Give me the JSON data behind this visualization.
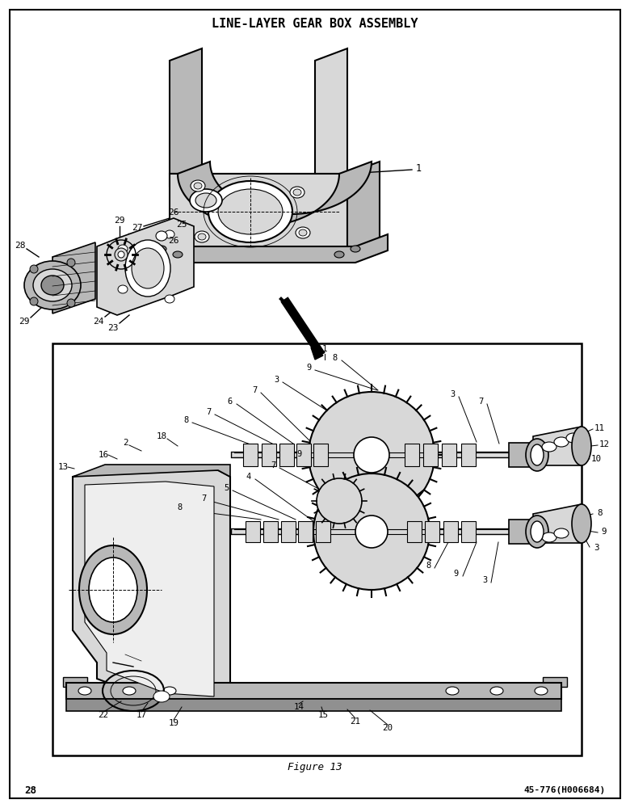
{
  "title": "LINE-LAYER GEAR BOX ASSEMBLY",
  "figure_label": "Figure 13",
  "page_number": "28",
  "part_number": "45-776(H006684)",
  "bg_color": "#ffffff",
  "fill_light": "#d8d8d8",
  "fill_mid": "#b8b8b8",
  "fill_dark": "#909090"
}
